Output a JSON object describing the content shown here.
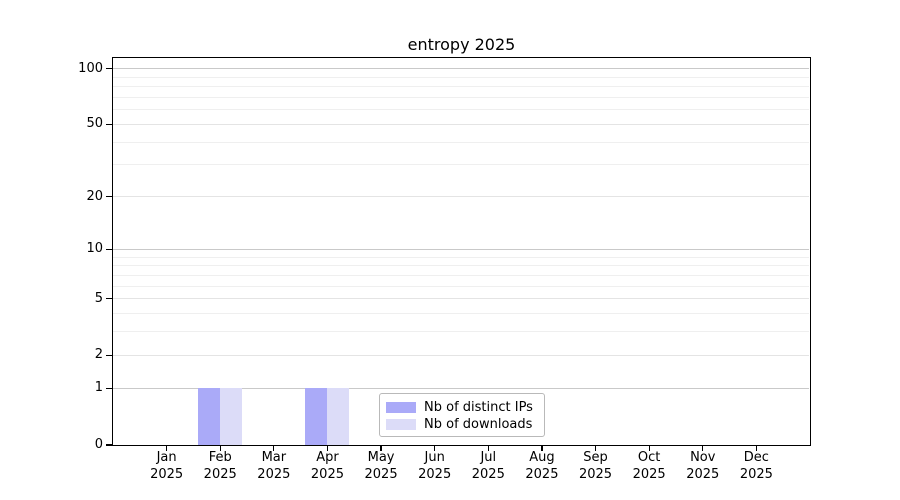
{
  "chart_data": {
    "type": "bar",
    "title": "entropy 2025",
    "categories": [
      "Jan",
      "Feb",
      "Mar",
      "Apr",
      "May",
      "Jun",
      "Jul",
      "Aug",
      "Sep",
      "Oct",
      "Nov",
      "Dec"
    ],
    "category_year": "2025",
    "series": [
      {
        "name": "Nb of distinct IPs",
        "color": "#aaaaf8",
        "values": [
          0,
          1,
          0,
          1,
          0,
          0,
          0,
          0,
          0,
          0,
          0,
          0
        ]
      },
      {
        "name": "Nb of downloads",
        "color": "#dcdcf8",
        "values": [
          0,
          1,
          0,
          1,
          0,
          0,
          0,
          0,
          0,
          0,
          0,
          0
        ]
      }
    ],
    "yscale": "log1p",
    "ylim": [
      0,
      114
    ],
    "yticks": [
      0,
      1,
      2,
      5,
      10,
      20,
      50,
      100
    ],
    "minor_grid_values": [
      3,
      4,
      6,
      7,
      8,
      9,
      30,
      40,
      60,
      70,
      80,
      90
    ],
    "grid": "on",
    "legend_position": "lower center",
    "grid_color_decade": "#c9c9c9",
    "grid_color_intermediate": "#e4e4e4",
    "grid_color_minor": "#efefef"
  }
}
